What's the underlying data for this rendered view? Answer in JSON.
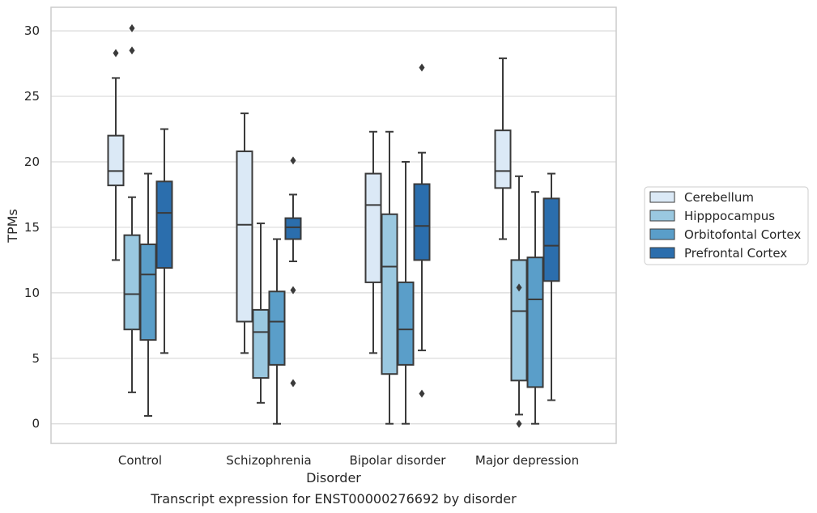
{
  "caption": "Transcript expression for ENST00000276692 by disorder",
  "chart_data": {
    "type": "box",
    "title": "",
    "xlabel": "Disorder",
    "ylabel": "TPMs",
    "ylim": [
      -1.5,
      31.8
    ],
    "yticks": [
      0,
      5,
      10,
      15,
      20,
      25,
      30
    ],
    "grid": "horizontal",
    "legend_position": "right",
    "categories": [
      "Control",
      "Schizophrenia",
      "Bipolar disorder",
      "Major depression"
    ],
    "series": [
      {
        "name": "Cerebellum",
        "color": "#dbe9f6",
        "boxes": [
          {
            "q1": 18.2,
            "median": 19.3,
            "q3": 22.0,
            "low": 12.5,
            "high": 26.4,
            "outliers": [
              28.3
            ]
          },
          {
            "q1": 7.8,
            "median": 15.2,
            "q3": 20.8,
            "low": 5.4,
            "high": 23.7,
            "outliers": []
          },
          {
            "q1": 10.8,
            "median": 16.7,
            "q3": 19.1,
            "low": 5.4,
            "high": 22.3,
            "outliers": []
          },
          {
            "q1": 18.0,
            "median": 19.3,
            "q3": 22.4,
            "low": 14.1,
            "high": 27.9,
            "outliers": []
          }
        ]
      },
      {
        "name": "Hipppocampus",
        "color": "#9ac8e0",
        "boxes": [
          {
            "q1": 7.2,
            "median": 9.9,
            "q3": 14.4,
            "low": 2.4,
            "high": 17.3,
            "outliers": [
              30.2,
              28.5
            ]
          },
          {
            "q1": 3.5,
            "median": 7.0,
            "q3": 8.7,
            "low": 1.6,
            "high": 15.3,
            "outliers": []
          },
          {
            "q1": 3.8,
            "median": 12.0,
            "q3": 16.0,
            "low": 0.0,
            "high": 22.3,
            "outliers": []
          },
          {
            "q1": 3.3,
            "median": 8.6,
            "q3": 12.5,
            "low": 0.7,
            "high": 18.9,
            "outliers": [
              10.4,
              0.0
            ]
          }
        ]
      },
      {
        "name": "Orbitofontal Cortex",
        "color": "#5a9ec9",
        "boxes": [
          {
            "q1": 6.4,
            "median": 11.4,
            "q3": 13.7,
            "low": 0.6,
            "high": 19.1,
            "outliers": []
          },
          {
            "q1": 4.5,
            "median": 7.8,
            "q3": 10.1,
            "low": 0.0,
            "high": 14.1,
            "outliers": []
          },
          {
            "q1": 4.5,
            "median": 7.2,
            "q3": 10.8,
            "low": 0.0,
            "high": 20.0,
            "outliers": []
          },
          {
            "q1": 2.8,
            "median": 9.5,
            "q3": 12.7,
            "low": 0.0,
            "high": 17.7,
            "outliers": []
          }
        ]
      },
      {
        "name": "Prefrontal Cortex",
        "color": "#2b6ead",
        "boxes": [
          {
            "q1": 11.9,
            "median": 16.1,
            "q3": 18.5,
            "low": 5.4,
            "high": 22.5,
            "outliers": []
          },
          {
            "q1": 14.1,
            "median": 15.0,
            "q3": 15.7,
            "low": 12.4,
            "high": 17.5,
            "outliers": [
              20.1,
              10.2,
              3.1
            ]
          },
          {
            "q1": 12.5,
            "median": 15.1,
            "q3": 18.3,
            "low": 5.6,
            "high": 20.7,
            "outliers": [
              27.2,
              2.3
            ]
          },
          {
            "q1": 10.9,
            "median": 13.6,
            "q3": 17.2,
            "low": 1.8,
            "high": 19.1,
            "outliers": []
          }
        ]
      }
    ]
  }
}
